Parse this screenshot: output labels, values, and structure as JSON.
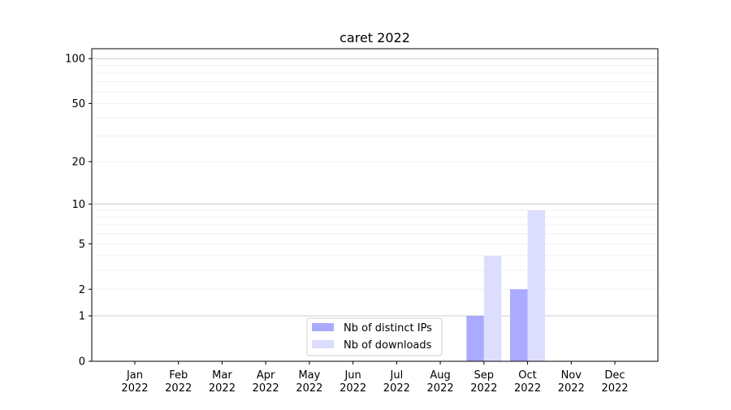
{
  "chart_data": {
    "type": "bar",
    "title": "caret 2022",
    "xlabel": "",
    "ylabel": "",
    "yscale": "symlog (log of 1+y)",
    "ylim": [
      0,
      116
    ],
    "yticks": [
      0,
      1,
      2,
      5,
      10,
      20,
      50,
      100
    ],
    "ytick_labels": [
      "0",
      "1",
      "2",
      "5",
      "10",
      "20",
      "50",
      "100"
    ],
    "grid": true,
    "categories": [
      "Jan\n2022",
      "Feb\n2022",
      "Mar\n2022",
      "Apr\n2022",
      "May\n2022",
      "Jun\n2022",
      "Jul\n2022",
      "Aug\n2022",
      "Sep\n2022",
      "Oct\n2022",
      "Nov\n2022",
      "Dec\n2022"
    ],
    "series": [
      {
        "name": "Nb of distinct IPs",
        "color": "#aaaaff",
        "values": [
          0,
          0,
          0,
          0,
          0,
          0,
          0,
          0,
          1,
          2,
          0,
          0
        ]
      },
      {
        "name": "Nb of downloads",
        "color": "#ddddff",
        "values": [
          0,
          0,
          0,
          0,
          0,
          0,
          0,
          0,
          4,
          9,
          0,
          0
        ]
      }
    ],
    "legend_position": "bottom-center"
  }
}
